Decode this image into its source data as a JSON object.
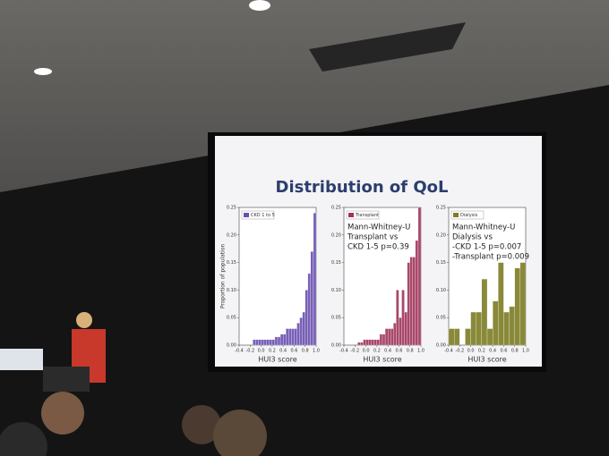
{
  "slide": {
    "title": "Distribution of QoL"
  },
  "chart_data": [
    {
      "type": "histogram",
      "xlabel": "HUI3 score",
      "ylabel": "Proportion of population",
      "bins": [
        -0.15,
        -0.1,
        -0.05,
        0,
        0.05,
        0.1,
        0.15,
        0.2,
        0.25,
        0.3,
        0.35,
        0.4,
        0.45,
        0.5,
        0.55,
        0.6,
        0.65,
        0.7,
        0.75,
        0.8,
        0.85,
        0.9,
        0.95,
        1
      ],
      "series": [
        {
          "name": "CKD 1 to 5",
          "color": "#6a4fb0",
          "values": [
            0.01,
            0.01,
            0.01,
            0.01,
            0.01,
            0.01,
            0.01,
            0.01,
            0.015,
            0.015,
            0.02,
            0.02,
            0.03,
            0.03,
            0.03,
            0.03,
            0.04,
            0.05,
            0.06,
            0.1,
            0.13,
            0.17,
            0.24
          ]
        }
      ],
      "xlim": [
        -0.4,
        1
      ],
      "xticks": [
        -0.4,
        -0.2,
        {
          "value": 0,
          "label": "0.0"
        },
        0.2,
        0.4,
        0.6,
        0.8,
        {
          "value": 1,
          "label": "1.0"
        }
      ],
      "ylim": [
        0,
        0.25
      ],
      "yticks": [
        {
          "value": 0,
          "label": "0.00"
        },
        0.05,
        {
          "value": 0.1,
          "label": "0.10"
        },
        0.15,
        {
          "value": 0.2,
          "label": "0.20"
        },
        0.25
      ]
    },
    {
      "type": "histogram",
      "xlabel": "HUI3 score",
      "annotations": [
        "Mann-Whitney-U",
        "Transplant vs",
        "CKD 1-5 p=0.39"
      ],
      "bins": [
        -0.15,
        -0.1,
        -0.05,
        0,
        0.05,
        0.1,
        0.15,
        0.2,
        0.25,
        0.3,
        0.35,
        0.4,
        0.45,
        0.5,
        0.55,
        0.6,
        0.65,
        0.7,
        0.75,
        0.8,
        0.85,
        0.9,
        0.95,
        1
      ],
      "series": [
        {
          "name": "Transplant",
          "color": "#a0355a",
          "values": [
            0.005,
            0.005,
            0.01,
            0.01,
            0.01,
            0.01,
            0.01,
            0.01,
            0.02,
            0.02,
            0.03,
            0.03,
            0.03,
            0.04,
            0.1,
            0.05,
            0.1,
            0.06,
            0.15,
            0.16,
            0.16,
            0.19,
            0.25
          ]
        }
      ],
      "xlim": [
        -0.4,
        1
      ],
      "xticks": [
        -0.4,
        -0.2,
        {
          "value": 0,
          "label": "0.0"
        },
        0.2,
        0.4,
        0.6,
        0.8,
        {
          "value": 1,
          "label": "1.0"
        }
      ],
      "ylim": [
        0,
        0.25
      ],
      "yticks": [
        {
          "value": 0,
          "label": "0.00"
        },
        0.05,
        {
          "value": 0.1,
          "label": "0.10"
        },
        0.15,
        {
          "value": 0.2,
          "label": "0.20"
        },
        0.25
      ]
    },
    {
      "type": "histogram",
      "xlabel": "HUI3 score",
      "annotations": [
        "Mann-Whitney-U",
        "Dialysis vs",
        "-CKD 1-5 p=0.007",
        "-Transplant p=0.009"
      ],
      "bins": [
        -0.4,
        -0.3,
        -0.2,
        -0.1,
        0,
        0.1,
        0.2,
        0.3,
        0.4,
        0.5,
        0.6,
        0.7,
        0.8,
        0.9,
        1
      ],
      "series": [
        {
          "name": "Dialysis",
          "color": "#7d7d25",
          "values": [
            0.03,
            0.03,
            0,
            0.03,
            0.06,
            0.06,
            0.12,
            0.03,
            0.08,
            0.15,
            0.06,
            0.07,
            0.14,
            0.15
          ]
        }
      ],
      "xlim": [
        -0.4,
        1
      ],
      "xticks": [
        -0.4,
        -0.2,
        {
          "value": 0,
          "label": "0.0"
        },
        0.2,
        0.4,
        0.6,
        0.8,
        {
          "value": 1,
          "label": "1.0"
        }
      ],
      "ylim": [
        0,
        0.25
      ],
      "yticks": [
        {
          "value": 0,
          "label": "0.00"
        },
        0.05,
        {
          "value": 0.1,
          "label": "0.10"
        },
        0.15,
        {
          "value": 0.2,
          "label": "0.20"
        },
        0.25
      ]
    }
  ]
}
